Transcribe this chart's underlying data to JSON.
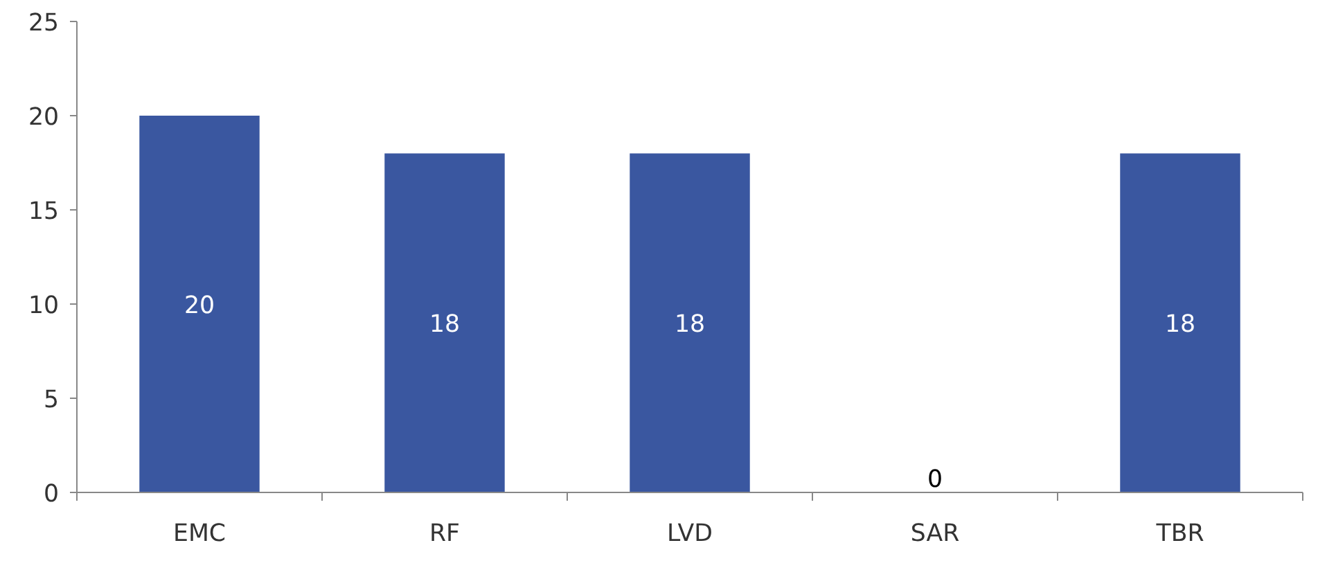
{
  "chart_data": {
    "type": "bar",
    "categories": [
      "EMC",
      "RF",
      "LVD",
      "SAR",
      "TBR"
    ],
    "values": [
      20,
      18,
      18,
      0,
      18
    ],
    "color": "#3a57a0",
    "ylim": [
      0,
      25
    ],
    "yticks": [
      0,
      5,
      10,
      15,
      20,
      25
    ],
    "value_labels": [
      "20",
      "18",
      "18",
      "0",
      "18"
    ],
    "grid": false
  }
}
